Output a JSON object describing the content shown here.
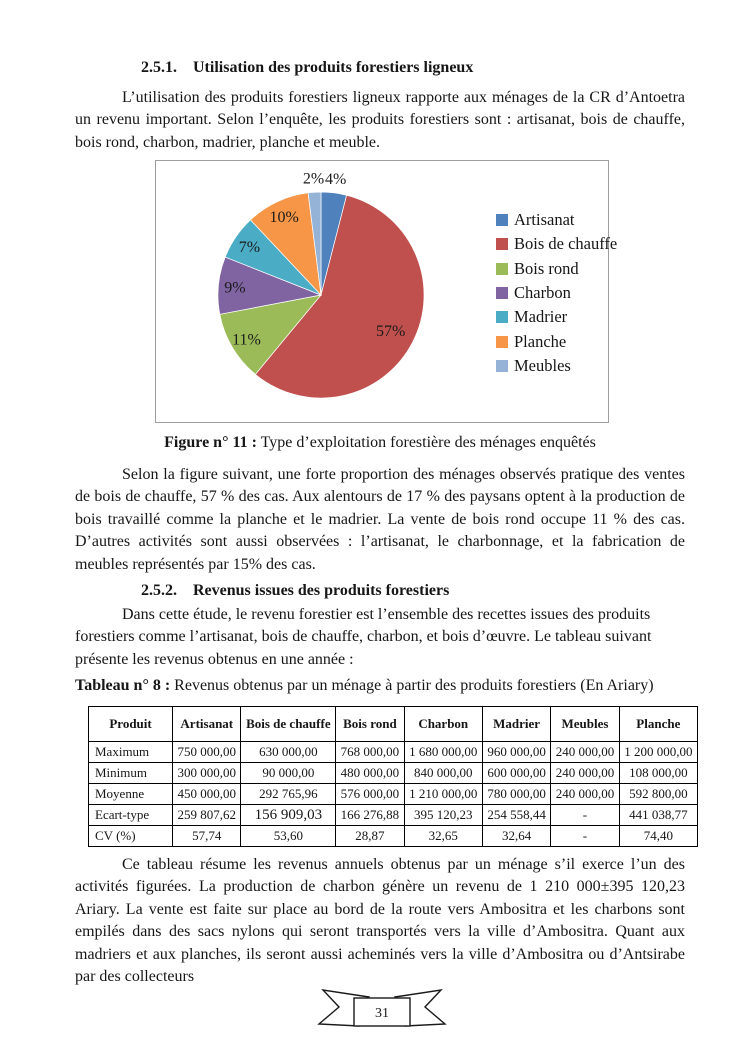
{
  "doc": {
    "heading1": {
      "number": "2.5.1.",
      "title": "Utilisation des produits forestiers ligneux"
    },
    "para1": "L’utilisation des produits forestiers ligneux rapporte aux ménages de la CR d’Antoetra un revenu important. Selon l’enquête, les produits forestiers sont : artisanat, bois de chauffe, bois rond, charbon, madrier, planche et meuble.",
    "figure_caption": {
      "label": "Figure n° 11 :",
      "text": "Type d’exploitation forestière des ménages enquêtés"
    },
    "para2": "Selon la figure suivant, une forte proportion des ménages observés pratique des ventes de bois de chauffe, 57 % des cas. Aux alentours de 17 % des paysans optent à la production de bois travaillé  comme la planche et le madrier.  La vente de bois rond occupe 11 % des cas. D’autres activités sont aussi observées : l’artisanat, le charbonnage, et la fabrication de meubles représentés par 15% des cas.",
    "heading2": {
      "number": "2.5.2.",
      "title": "Revenus issues des produits forestiers"
    },
    "para3": "Dans cette étude, le revenu forestier est l’ensemble des recettes issues des produits forestiers comme l’artisanat, bois de chauffe, charbon, et bois d’œuvre. Le tableau suivant présente les revenus obtenus en une année :",
    "table_caption": {
      "label": "Tableau n° 8 :",
      "text": "Revenus obtenus par un ménage à partir des produits forestiers (En Ariary)"
    },
    "table": {
      "headers": [
        "Produit",
        "Artisanat",
        "Bois de chauffe",
        "Bois rond",
        "Charbon",
        "Madrier",
        "Meubles",
        "Planche"
      ],
      "rows": [
        [
          "Maximum",
          "750 000,00",
          "630 000,00",
          "768 000,00",
          "1 680 000,00",
          "960 000,00",
          "240 000,00",
          "1 200 000,00"
        ],
        [
          "Minimum",
          "300 000,00",
          "90 000,00",
          "480 000,00",
          "840 000,00",
          "600 000,00",
          "240 000,00",
          "108 000,00"
        ],
        [
          "Moyenne",
          "450 000,00",
          "292 765,96",
          "576 000,00",
          "1 210 000,00",
          "780 000,00",
          "240 000,00",
          "592 800,00"
        ],
        [
          "Ecart-type",
          "259 807,62",
          "156 909,03",
          "166 276,88",
          "395 120,23",
          "254 558,44",
          "-",
          "441 038,77"
        ],
        [
          "CV (%)",
          "57,74",
          "53,60",
          "28,87",
          "32,65",
          "32,64",
          "-",
          "74,40"
        ]
      ]
    },
    "para4": "Ce tableau résume les revenus annuels obtenus par un ménage s’il exerce l’un des activités figurées. La production de charbon génère un revenu de 1 210 000±395 120,23 Ariary. La vente est faite sur  place au bord de  la route vers Ambositra et les charbons sont empilés dans des sacs nylons qui seront transportés vers la ville d’Ambositra.  Quant aux madriers et aux planches, ils seront aussi acheminés vers la ville d’Ambositra ou d’Antsirabe par des collecteurs",
    "page_number": "31"
  },
  "chart_data": {
    "type": "pie",
    "title": "Type d’exploitation forestière des ménages enquêtés",
    "categories": [
      "Artisanat",
      "Bois de chauffe",
      "Bois rond",
      "Charbon",
      "Madrier",
      "Planche",
      "Meubles"
    ],
    "values": [
      4,
      57,
      11,
      9,
      7,
      10,
      2
    ],
    "labels": [
      "4%",
      "57%",
      "11%",
      "9%",
      "7%",
      "10%",
      "2%"
    ],
    "colors": [
      "#4F81BD",
      "#C0504D",
      "#9BBB59",
      "#8064A2",
      "#4BACC6",
      "#F79646",
      "#95B3D7"
    ],
    "unit": "%",
    "legend_position": "right",
    "start_angle_deg": 0,
    "direction": "clockwise"
  }
}
